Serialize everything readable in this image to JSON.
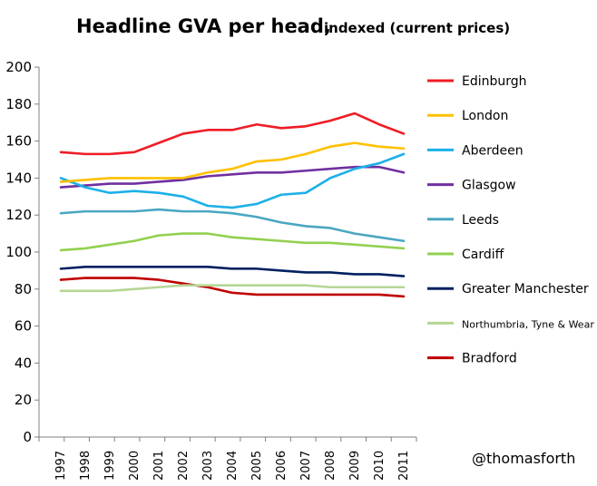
{
  "chart_data": {
    "type": "line",
    "title": "Headline GVA per head,",
    "subtitle": "indexed (current prices)",
    "xlabel": "",
    "ylabel": "",
    "ylim": [
      0,
      200
    ],
    "yticks": [
      0,
      20,
      40,
      60,
      80,
      100,
      120,
      140,
      160,
      180,
      200
    ],
    "categories": [
      "1997",
      "1998",
      "1999",
      "2000",
      "2001",
      "2002",
      "2003",
      "2004",
      "2005",
      "2006",
      "2007",
      "2008",
      "2009",
      "2010",
      "2011"
    ],
    "grid": false,
    "legend_position": "right",
    "series": [
      {
        "name": "Edinburgh",
        "color": "#ee1c25",
        "values": [
          154,
          153,
          153,
          154,
          159,
          164,
          166,
          166,
          169,
          167,
          168,
          171,
          175,
          169,
          164
        ]
      },
      {
        "name": "London",
        "color": "#ffc000",
        "values": [
          138,
          139,
          140,
          140,
          140,
          140,
          143,
          145,
          149,
          150,
          153,
          157,
          159,
          157,
          156
        ]
      },
      {
        "name": "Aberdeen",
        "color": "#1cb0e8",
        "values": [
          140,
          135,
          132,
          133,
          132,
          130,
          125,
          124,
          126,
          131,
          132,
          140,
          145,
          148,
          153
        ]
      },
      {
        "name": "Glasgow",
        "color": "#7030a0",
        "values": [
          135,
          136,
          137,
          137,
          138,
          139,
          141,
          142,
          143,
          143,
          144,
          145,
          146,
          146,
          143
        ]
      },
      {
        "name": "Leeds",
        "color": "#4ba7c1",
        "values": [
          121,
          122,
          122,
          122,
          123,
          122,
          122,
          121,
          119,
          116,
          114,
          113,
          110,
          108,
          106
        ]
      },
      {
        "name": "Cardiff",
        "color": "#92d050",
        "values": [
          101,
          102,
          104,
          106,
          109,
          110,
          110,
          108,
          107,
          106,
          105,
          105,
          104,
          103,
          102
        ]
      },
      {
        "name": "Greater Manchester",
        "color": "#002060",
        "values": [
          91,
          92,
          92,
          92,
          92,
          92,
          92,
          91,
          91,
          90,
          89,
          89,
          88,
          88,
          87
        ]
      },
      {
        "name": "Northumbria, Tyne & Wear",
        "color": "#b5d695",
        "values": [
          79,
          79,
          79,
          80,
          81,
          82,
          82,
          82,
          82,
          82,
          82,
          81,
          81,
          81,
          81
        ]
      },
      {
        "name": "Bradford",
        "color": "#c00000",
        "values": [
          85,
          86,
          86,
          86,
          85,
          83,
          81,
          78,
          77,
          77,
          77,
          77,
          77,
          77,
          76
        ]
      }
    ]
  },
  "credit": "@thomasforth"
}
